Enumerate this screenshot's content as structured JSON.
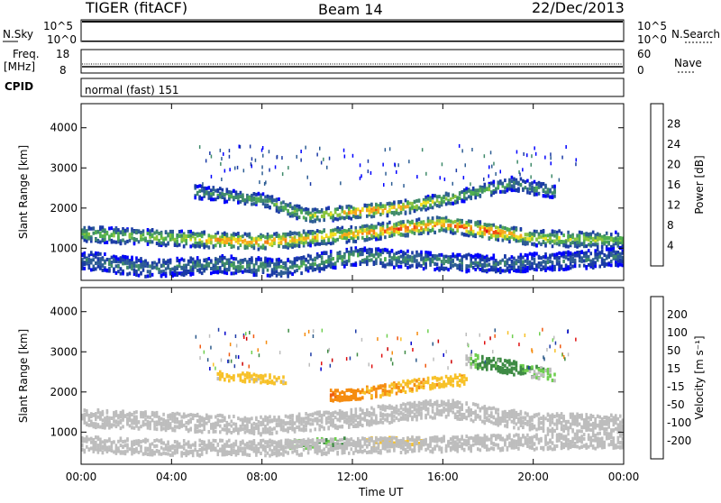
{
  "header": {
    "station": "TIGER (fitACF)",
    "beam": "Beam 14",
    "date": "22/Dec/2013"
  },
  "strip": {
    "nsky_label": "N.Sky",
    "nsky_ticks": [
      "10^5",
      "10^0"
    ],
    "nsearch_label": "N.Search",
    "freq_label_1": "Freq.",
    "freq_label_2": "[MHz]",
    "freq_ticks": [
      "18",
      "8"
    ],
    "nave_ticks": [
      "60",
      "0"
    ],
    "nave_label": "Nave",
    "cpid_label": "CPID",
    "cpid_text": "normal (fast) 151"
  },
  "colors": {
    "power": [
      "#0000ff",
      "#1a3aa6",
      "#2e5e94",
      "#3f8a6a",
      "#4faf4f",
      "#8cc63e",
      "#f0e020",
      "#f7a81a",
      "#f57d14",
      "#f04a10",
      "#e01010"
    ],
    "velocity": [
      "#0000cc",
      "#1e3ca8",
      "#2c5a8a",
      "#3e8a44",
      "#6fcf4f",
      "#bdbdbd",
      "#bdbdbd",
      "#f7c128",
      "#f58c10",
      "#f05a10",
      "#e01010",
      "#cc0000"
    ]
  },
  "chart_data": [
    {
      "type": "heatmap",
      "ylabel": "Slant Range [km]",
      "xlabel": "",
      "xticks": [
        "00:00",
        "04:00",
        "08:00",
        "12:00",
        "16:00",
        "20:00",
        "00:00"
      ],
      "xlim": [
        0,
        24
      ],
      "yticks": [
        "1000",
        "2000",
        "3000",
        "4000"
      ],
      "ylim": [
        200,
        4600
      ],
      "colorbar": {
        "label": "Power [dB]",
        "ticks": [
          "28",
          "24",
          "20",
          "16",
          "12",
          "8",
          "4"
        ],
        "range": [
          0,
          30
        ]
      },
      "bands": [
        {
          "name": "main",
          "center": [
            [
              0,
              1350
            ],
            [
              4,
              1250
            ],
            [
              8,
              1150
            ],
            [
              12,
              1350
            ],
            [
              16,
              1600
            ],
            [
              20,
              1250
            ],
            [
              24,
              1200
            ]
          ],
          "width": 350,
          "peak": [
            [
              0,
              14
            ],
            [
              4,
              16
            ],
            [
              6,
              22
            ],
            [
              8,
              24
            ],
            [
              10,
              20
            ],
            [
              12,
              22
            ],
            [
              14,
              26
            ],
            [
              16,
              24
            ],
            [
              18,
              28
            ],
            [
              20,
              18
            ],
            [
              24,
              14
            ]
          ]
        },
        {
          "name": "upper",
          "center": [
            [
              5,
              2400
            ],
            [
              8,
              2200
            ],
            [
              10,
              1800
            ],
            [
              12,
              1900
            ],
            [
              14,
              2000
            ],
            [
              16,
              2200
            ],
            [
              19,
              2600
            ],
            [
              21,
              2400
            ]
          ],
          "width": 300,
          "peak": [
            [
              5,
              10
            ],
            [
              8,
              12
            ],
            [
              11,
              18
            ],
            [
              13,
              26
            ],
            [
              15,
              18
            ],
            [
              17,
              14
            ],
            [
              20,
              10
            ]
          ]
        },
        {
          "name": "low",
          "center": [
            [
              0,
              700
            ],
            [
              3,
              500
            ],
            [
              6,
              600
            ],
            [
              9,
              500
            ],
            [
              12,
              800
            ],
            [
              15,
              700
            ],
            [
              18,
              600
            ],
            [
              22,
              700
            ],
            [
              24,
              800
            ]
          ],
          "width": 400,
          "peak": [
            [
              0,
              8
            ],
            [
              6,
              10
            ],
            [
              12,
              12
            ],
            [
              18,
              8
            ],
            [
              24,
              8
            ]
          ]
        }
      ]
    },
    {
      "type": "heatmap",
      "ylabel": "Slant Range [km]",
      "xlabel": "Time UT",
      "xticks": [
        "00:00",
        "04:00",
        "08:00",
        "12:00",
        "16:00",
        "20:00",
        "00:00"
      ],
      "xlim": [
        0,
        24
      ],
      "yticks": [
        "1000",
        "2000",
        "3000",
        "4000"
      ],
      "ylim": [
        200,
        4600
      ],
      "colorbar": {
        "label": "Velocity [m s⁻¹]",
        "ticks": [
          "200",
          "100",
          "50",
          "15",
          "-15",
          "-50",
          "-100",
          "-200"
        ],
        "range": [
          -250,
          250
        ]
      },
      "bands": [
        {
          "name": "main",
          "center": [
            [
              0,
              1350
            ],
            [
              4,
              1250
            ],
            [
              8,
              1150
            ],
            [
              12,
              1350
            ],
            [
              16,
              1600
            ],
            [
              20,
              1250
            ],
            [
              24,
              1200
            ]
          ],
          "width": 400,
          "vel": [
            [
              0,
              0
            ],
            [
              24,
              0
            ]
          ]
        },
        {
          "name": "upper-west",
          "center": [
            [
              6,
              2400
            ],
            [
              9,
              2300
            ]
          ],
          "width": 200,
          "vel": [
            [
              6,
              -40
            ],
            [
              9,
              -40
            ]
          ]
        },
        {
          "name": "upper-east",
          "center": [
            [
              11,
              1900
            ],
            [
              13,
              2000
            ],
            [
              15,
              2200
            ],
            [
              17,
              2300
            ]
          ],
          "width": 260,
          "vel": [
            [
              11,
              -150
            ],
            [
              12.5,
              -80
            ],
            [
              15,
              -70
            ],
            [
              17,
              -60
            ]
          ]
        },
        {
          "name": "northeast",
          "center": [
            [
              17,
              2800
            ],
            [
              19,
              2600
            ],
            [
              21,
              2400
            ]
          ],
          "width": 300,
          "vel": [
            [
              17,
              10
            ],
            [
              18.5,
              60
            ],
            [
              20,
              20
            ],
            [
              21,
              10
            ]
          ]
        },
        {
          "name": "low-south",
          "center": [
            [
              9,
              700
            ],
            [
              12,
              750
            ],
            [
              15,
              750
            ]
          ],
          "width": 200,
          "vel": [
            [
              9,
              10
            ],
            [
              11,
              40
            ],
            [
              13,
              -40
            ],
            [
              15,
              -40
            ]
          ]
        },
        {
          "name": "low",
          "center": [
            [
              0,
              700
            ],
            [
              4,
              600
            ],
            [
              8,
              600
            ],
            [
              16,
              700
            ],
            [
              24,
              800
            ]
          ],
          "width": 350,
          "vel": [
            [
              0,
              0
            ],
            [
              24,
              0
            ]
          ]
        }
      ]
    }
  ]
}
